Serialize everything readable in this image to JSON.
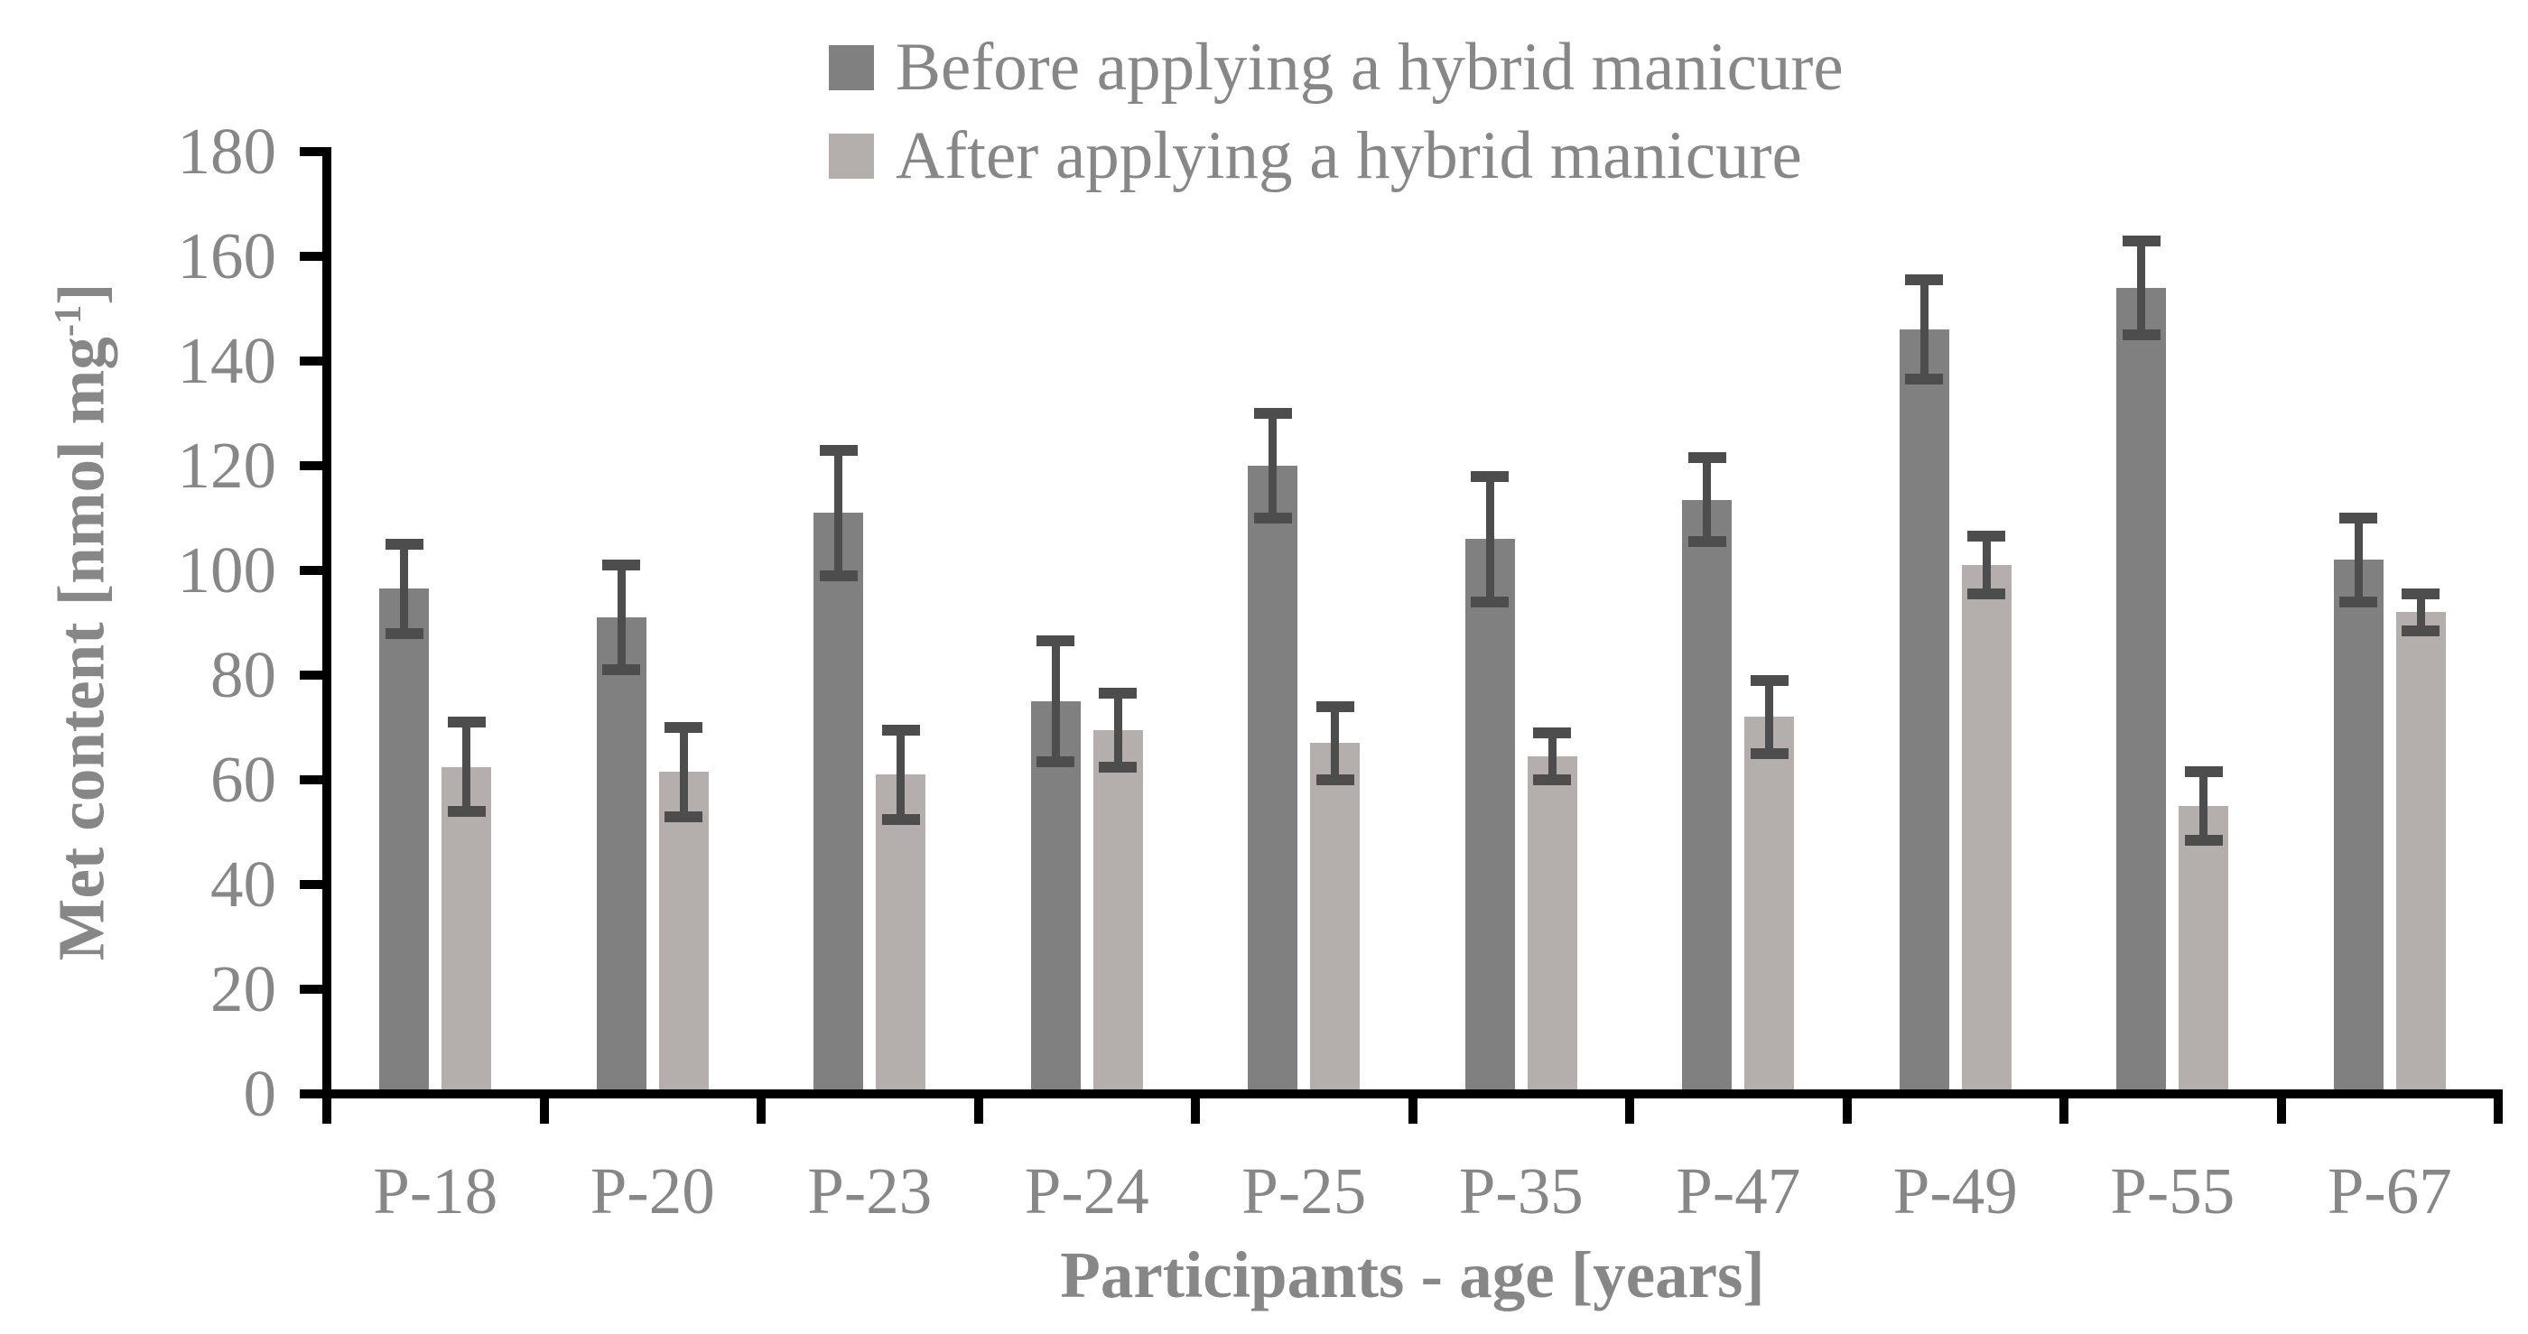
{
  "chart_data": {
    "type": "bar",
    "title": "",
    "categories": [
      "P-18",
      "P-20",
      "P-23",
      "P-24",
      "P-25",
      "P-35",
      "P-47",
      "P-49",
      "P-55",
      "P-67"
    ],
    "series": [
      {
        "name": "Before applying a hybrid manicure",
        "color": "#808080",
        "values": [
          96.5,
          91,
          111,
          75,
          120,
          106,
          113.5,
          146,
          154,
          102
        ],
        "errors": [
          8.5,
          10,
          12,
          11.5,
          10,
          12,
          8,
          9.5,
          9,
          8
        ]
      },
      {
        "name": "After applying a hybrid manicure",
        "color": "#b4afac",
        "values": [
          62.5,
          61.5,
          61,
          69.5,
          67,
          64.5,
          72,
          101,
          55,
          92
        ],
        "errors": [
          8.5,
          8.5,
          8.5,
          7,
          7,
          4.5,
          7,
          5.5,
          6.5,
          3.5
        ]
      }
    ],
    "xlabel": "Participants - age [years]",
    "ylabel": "Met content [nmol mg⁻¹]",
    "ylabel_parts": {
      "main": "Met content [nmol mg",
      "sup": "-1",
      "close": "]"
    },
    "ylim": [
      0,
      180
    ],
    "ytick_step": 20,
    "ytick_labels": [
      "0",
      "20",
      "40",
      "60",
      "80",
      "100",
      "120",
      "140",
      "160",
      "180"
    ],
    "legend_position": "top-center",
    "grid": false,
    "colors": {
      "axis": "#000000",
      "error_bar": "#4d4d4d",
      "text": "#878787"
    }
  }
}
